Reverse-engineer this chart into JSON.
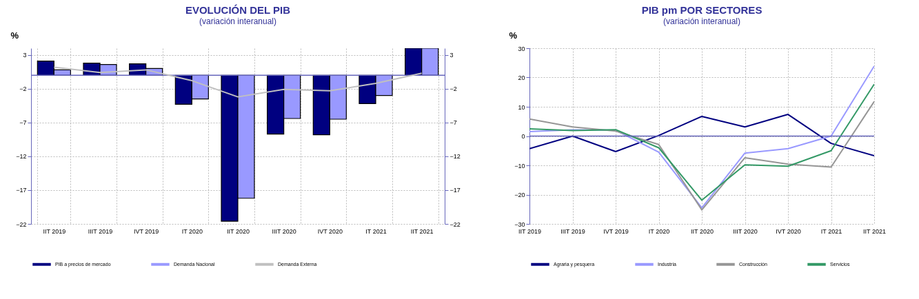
{
  "chart_data": [
    {
      "type": "bar",
      "title": "EVOLUCIÓN DEL PIB",
      "subtitle": "(variación interanual)",
      "ylabel": "%",
      "categories": [
        "IIT 2019",
        "IIIT 2019",
        "IVT 2019",
        "IT 2020",
        "IIT 2020",
        "IIIT 2020",
        "IVT 2020",
        "IT 2021",
        "IIT 2021"
      ],
      "series": [
        {
          "name": "PIB a precios de mercado",
          "color": "#000080",
          "values": [
            2.1,
            1.8,
            1.7,
            -4.3,
            -21.6,
            -8.7,
            -8.8,
            -4.2,
            4
          ]
        },
        {
          "name": "Demanda Nacional",
          "color": "#9999ff",
          "values": [
            0.8,
            1.6,
            1.0,
            -3.5,
            -18.2,
            -6.4,
            -6.5,
            -3.0,
            4
          ]
        },
        {
          "name": "Demanda Externa",
          "type": "line",
          "axis": "y2",
          "color": "#c0c0c0",
          "values": [
            1.2,
            0.4,
            0.8,
            -0.8,
            -3.2,
            -2.1,
            -2.3,
            -1.2,
            0.3
          ]
        }
      ],
      "ylim": [
        -22,
        4
      ],
      "yticks": [
        3,
        -2,
        -7,
        -12,
        -17,
        -22
      ],
      "y2lim": [
        -22,
        4
      ],
      "y2ticks": [
        3,
        -2,
        -7,
        -12,
        -17,
        -22
      ],
      "ref_lines": [
        {
          "axis": "y",
          "value": 0,
          "color": "#6666bb"
        }
      ],
      "grid": true,
      "legend": "bottom"
    },
    {
      "type": "line",
      "title": "PIB pm POR SECTORES",
      "subtitle": "(variación interanual)",
      "ylabel": "%",
      "categories": [
        "IIT 2019",
        "IIIT 2019",
        "IVT 2019",
        "IT 2020",
        "IIT 2020",
        "IIIT 2020",
        "IVT 2020",
        "IT 2021",
        "IIT 2021"
      ],
      "series": [
        {
          "name": "Agraria y pesquera",
          "color": "#000080",
          "values": [
            -4.3,
            0,
            -5.3,
            0.2,
            6.7,
            3.1,
            7.4,
            -2.5,
            -6.7
          ]
        },
        {
          "name": "Industria",
          "color": "#9999ff",
          "values": [
            1.5,
            2.1,
            2.0,
            -5.5,
            -24.5,
            -5.8,
            -4.3,
            0,
            23.9
          ]
        },
        {
          "name": "Construcción",
          "color": "#969696",
          "values": [
            5.8,
            3.1,
            1.7,
            -2.9,
            -25.2,
            -7.4,
            -9.6,
            -10.6,
            11.8
          ]
        },
        {
          "name": "Servicios",
          "color": "#339966",
          "values": [
            2.5,
            1.9,
            2.2,
            -4.0,
            -21.9,
            -9.8,
            -10.3,
            -5.0,
            17.7
          ]
        }
      ],
      "ylim": [
        -30,
        30
      ],
      "yticks": [
        -30,
        -20,
        -10,
        0,
        10,
        20,
        30
      ],
      "ref_lines": [
        {
          "axis": "y",
          "value": 0,
          "color": "#6666bb"
        }
      ],
      "grid": true,
      "legend": "bottom"
    }
  ]
}
